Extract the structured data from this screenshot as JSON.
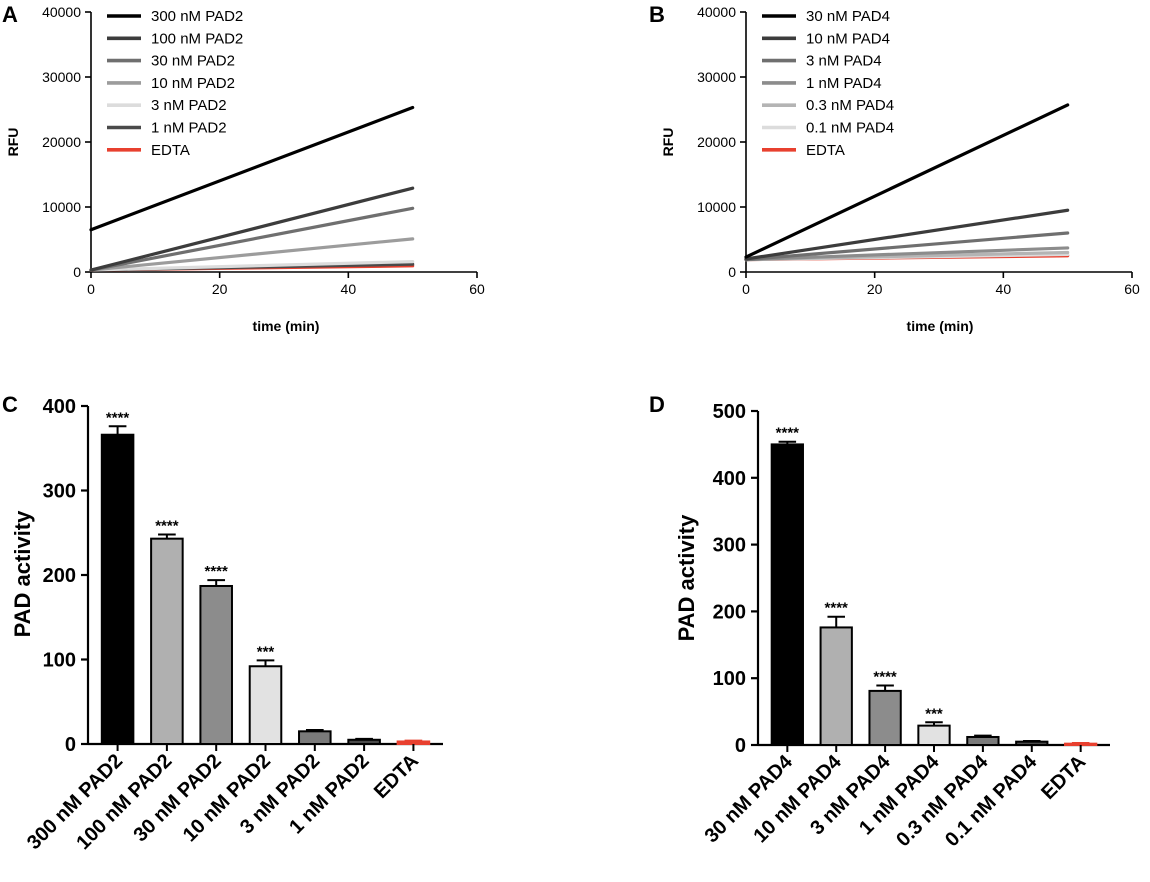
{
  "chart_data": [
    {
      "panel": "A",
      "type": "line",
      "title": "",
      "xlabel": "time (min)",
      "ylabel": "RFU",
      "xlim": [
        0,
        60
      ],
      "ylim": [
        0,
        40000
      ],
      "xticks": [
        0,
        20,
        40,
        60
      ],
      "yticks": [
        0,
        10000,
        20000,
        30000,
        40000
      ],
      "legend_position": "top-left",
      "series": [
        {
          "name": "300 nM PAD2",
          "color": "#000000",
          "x": [
            0,
            50
          ],
          "y": [
            6500,
            25300
          ]
        },
        {
          "name": "100 nM PAD2",
          "color": "#3c3c3c",
          "x": [
            0,
            50
          ],
          "y": [
            300,
            12900
          ]
        },
        {
          "name": "30 nM PAD2",
          "color": "#6f6f6f",
          "x": [
            0,
            50
          ],
          "y": [
            300,
            9800
          ]
        },
        {
          "name": "10 nM PAD2",
          "color": "#9c9c9c",
          "x": [
            0,
            50
          ],
          "y": [
            300,
            5100
          ]
        },
        {
          "name": "3 nM PAD2",
          "color": "#dcdcdc",
          "x": [
            0,
            50
          ],
          "y": [
            300,
            1600
          ]
        },
        {
          "name": "1 nM PAD2",
          "color": "#4a4a4a",
          "x": [
            0,
            50
          ],
          "y": [
            300,
            1200
          ]
        },
        {
          "name": "EDTA",
          "color": "#e8402f",
          "x": [
            0,
            50
          ],
          "y": [
            300,
            950
          ]
        }
      ]
    },
    {
      "panel": "B",
      "type": "line",
      "title": "",
      "xlabel": "time (min)",
      "ylabel": "RFU",
      "xlim": [
        0,
        60
      ],
      "ylim": [
        0,
        40000
      ],
      "xticks": [
        0,
        20,
        40,
        60
      ],
      "yticks": [
        0,
        10000,
        20000,
        30000,
        40000
      ],
      "legend_position": "top-left",
      "series": [
        {
          "name": "30 nM PAD4",
          "color": "#000000",
          "x": [
            0,
            50
          ],
          "y": [
            2300,
            25700
          ]
        },
        {
          "name": "10 nM PAD4",
          "color": "#3c3c3c",
          "x": [
            0,
            50
          ],
          "y": [
            2000,
            9500
          ]
        },
        {
          "name": "3 nM PAD4",
          "color": "#6f6f6f",
          "x": [
            0,
            50
          ],
          "y": [
            1900,
            6000
          ]
        },
        {
          "name": "1 nM PAD4",
          "color": "#8c8c8c",
          "x": [
            0,
            50
          ],
          "y": [
            1900,
            3700
          ]
        },
        {
          "name": "0.3 nM PAD4",
          "color": "#b4b4b4",
          "x": [
            0,
            50
          ],
          "y": [
            1900,
            3000
          ]
        },
        {
          "name": "0.1 nM PAD4",
          "color": "#dcdcdc",
          "x": [
            0,
            50
          ],
          "y": [
            1900,
            2700
          ]
        },
        {
          "name": "EDTA",
          "color": "#e8402f",
          "x": [
            0,
            50
          ],
          "y": [
            1900,
            2500
          ]
        }
      ]
    },
    {
      "panel": "C",
      "type": "bar",
      "title": "",
      "xlabel": "",
      "ylabel": "PAD activity",
      "ylim": [
        0,
        400
      ],
      "yticks": [
        0,
        100,
        200,
        300,
        400
      ],
      "categories": [
        "300 nM PAD2",
        "100 nM PAD2",
        "30 nM PAD2",
        "10 nM PAD2",
        "3 nM PAD2",
        "1 nM PAD2",
        "EDTA"
      ],
      "values": [
        366,
        243,
        187,
        92,
        15,
        5,
        3
      ],
      "errors": [
        10,
        5,
        7,
        7,
        1.5,
        1,
        1
      ],
      "fills": [
        "#000000",
        "#b0b0b0",
        "#8c8c8c",
        "#e2e2e2",
        "#7a7a7a",
        "#4a4a4a",
        "#e8402f"
      ],
      "annotations": [
        "****",
        "****",
        "****",
        "***",
        "",
        "",
        ""
      ]
    },
    {
      "panel": "D",
      "type": "bar",
      "title": "",
      "xlabel": "",
      "ylabel": "PAD activity",
      "ylim": [
        0,
        500
      ],
      "yticks": [
        0,
        100,
        200,
        300,
        400,
        500
      ],
      "categories": [
        "30 nM PAD4",
        "10 nM PAD4",
        "3 nM PAD4",
        "1 nM PAD4",
        "0.3 nM PAD4",
        "0.1 nM PAD4",
        "EDTA"
      ],
      "values": [
        450,
        176,
        81,
        29,
        12,
        5,
        2
      ],
      "errors": [
        4,
        16,
        8,
        5,
        2,
        1,
        1
      ],
      "fills": [
        "#000000",
        "#b0b0b0",
        "#8c8c8c",
        "#e2e2e2",
        "#7a7a7a",
        "#4a4a4a",
        "#e8402f"
      ],
      "annotations": [
        "****",
        "****",
        "****",
        "***",
        "",
        "",
        ""
      ]
    }
  ]
}
